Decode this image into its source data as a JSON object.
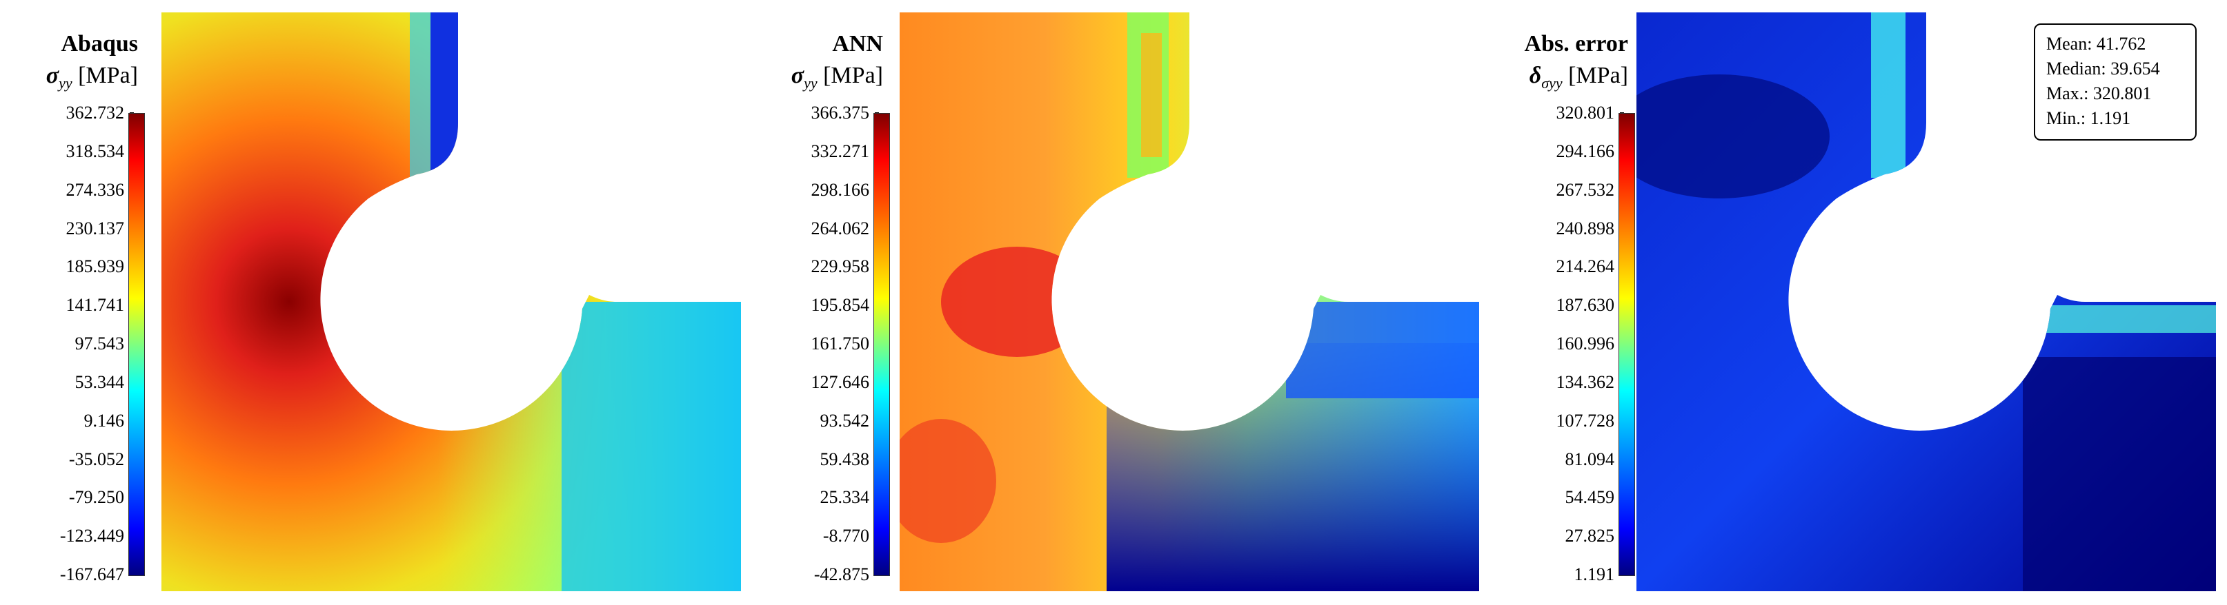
{
  "chart_data": [
    {
      "type": "heatmap",
      "title": "Abaqus",
      "quantity": "σ",
      "quantity_subscript": "yy",
      "unit": "[MPa]",
      "colorbar_ticks": [
        "362.732",
        "318.534",
        "274.336",
        "230.137",
        "185.939",
        "141.741",
        "97.543",
        "53.344",
        "9.146",
        "-35.052",
        "-79.250",
        "-123.449",
        "-167.647"
      ],
      "range": [
        -167.647,
        362.732
      ],
      "colormap": "jet"
    },
    {
      "type": "heatmap",
      "title": "ANN",
      "quantity": "σ",
      "quantity_subscript": "yy",
      "unit": "[MPa]",
      "colorbar_ticks": [
        "366.375",
        "332.271",
        "298.166",
        "264.062",
        "229.958",
        "195.854",
        "161.750",
        "127.646",
        "93.542",
        "59.438",
        "25.334",
        "-8.770",
        "-42.875"
      ],
      "range": [
        -42.875,
        366.375
      ],
      "colormap": "jet"
    },
    {
      "type": "heatmap",
      "title": "Abs. error",
      "quantity": "δ",
      "quantity_subscript": "σyy",
      "unit": "[MPa]",
      "colorbar_ticks": [
        "320.801",
        "294.166",
        "267.532",
        "240.898",
        "214.264",
        "187.630",
        "160.996",
        "134.362",
        "107.728",
        "81.094",
        "54.459",
        "27.825",
        "1.191"
      ],
      "range": [
        1.191,
        320.801
      ],
      "colormap": "jet",
      "stats": {
        "mean": "Mean: 41.762",
        "median": "Median: 39.654",
        "max": "Max.: 320.801",
        "min": "Min.: 1.191"
      }
    }
  ]
}
